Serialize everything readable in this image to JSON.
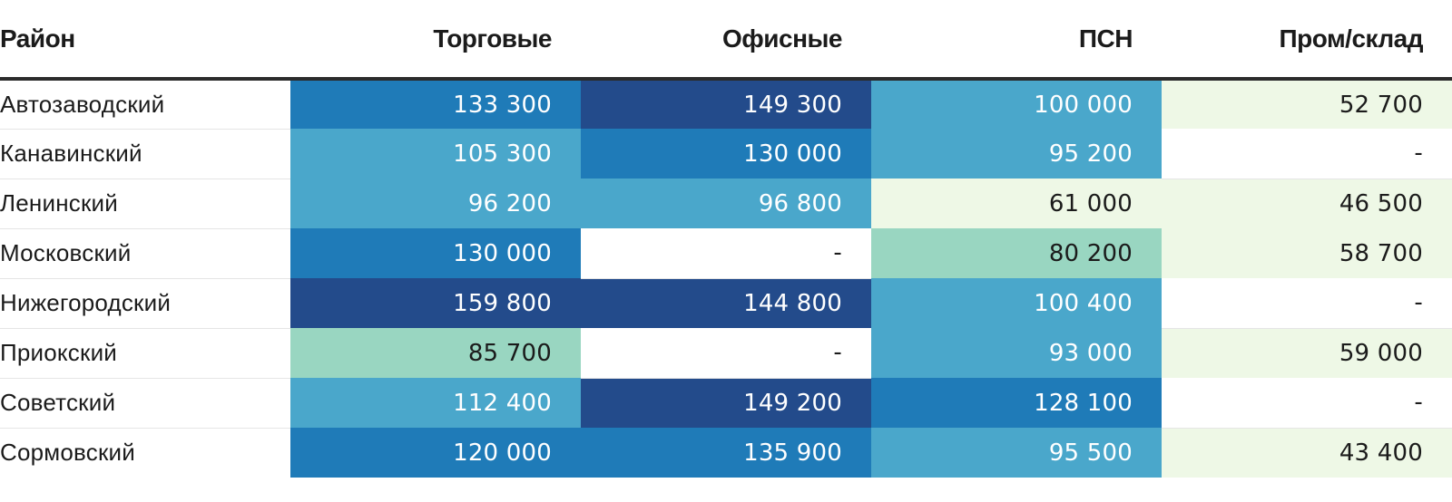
{
  "chart_data": {
    "type": "heatmap",
    "columns": [
      "Район",
      "Торговые",
      "Офисные",
      "ПСН",
      "Пром/склад"
    ],
    "rows": [
      {
        "name": "Автозаводский",
        "values": [
          "133 300",
          "149 300",
          "100 000",
          "52 700"
        ]
      },
      {
        "name": "Канавинский",
        "values": [
          "105 300",
          "130 000",
          "95 200",
          "-"
        ]
      },
      {
        "name": "Ленинский",
        "values": [
          "96 200",
          "96 800",
          "61 000",
          "46 500"
        ]
      },
      {
        "name": "Московский",
        "values": [
          "130 000",
          "-",
          "80 200",
          "58 700"
        ]
      },
      {
        "name": "Нижегородский",
        "values": [
          "159 800",
          "144 800",
          "100 400",
          "-"
        ]
      },
      {
        "name": "Приокский",
        "values": [
          "85 700",
          "-",
          "93 000",
          "59 000"
        ]
      },
      {
        "name": "Советский",
        "values": [
          "112 400",
          "149 200",
          "128 100",
          "-"
        ]
      },
      {
        "name": "Сормовский",
        "values": [
          "120 000",
          "135 900",
          "95 500",
          "43 400"
        ]
      }
    ],
    "color_scale": [
      {
        "min": 140000,
        "color": "#234b8b",
        "text": "#ffffff"
      },
      {
        "min": 120000,
        "color": "#1f7bb8",
        "text": "#ffffff"
      },
      {
        "min": 90000,
        "color": "#4aa7cb",
        "text": "#ffffff"
      },
      {
        "min": 70000,
        "color": "#99d6c1",
        "text": "#1b1b1b"
      },
      {
        "min": 0,
        "color": "#eef8e6",
        "text": "#1b1b1b"
      }
    ],
    "empty_color": "#ffffff",
    "empty_text_color": "#1b1b1b"
  }
}
